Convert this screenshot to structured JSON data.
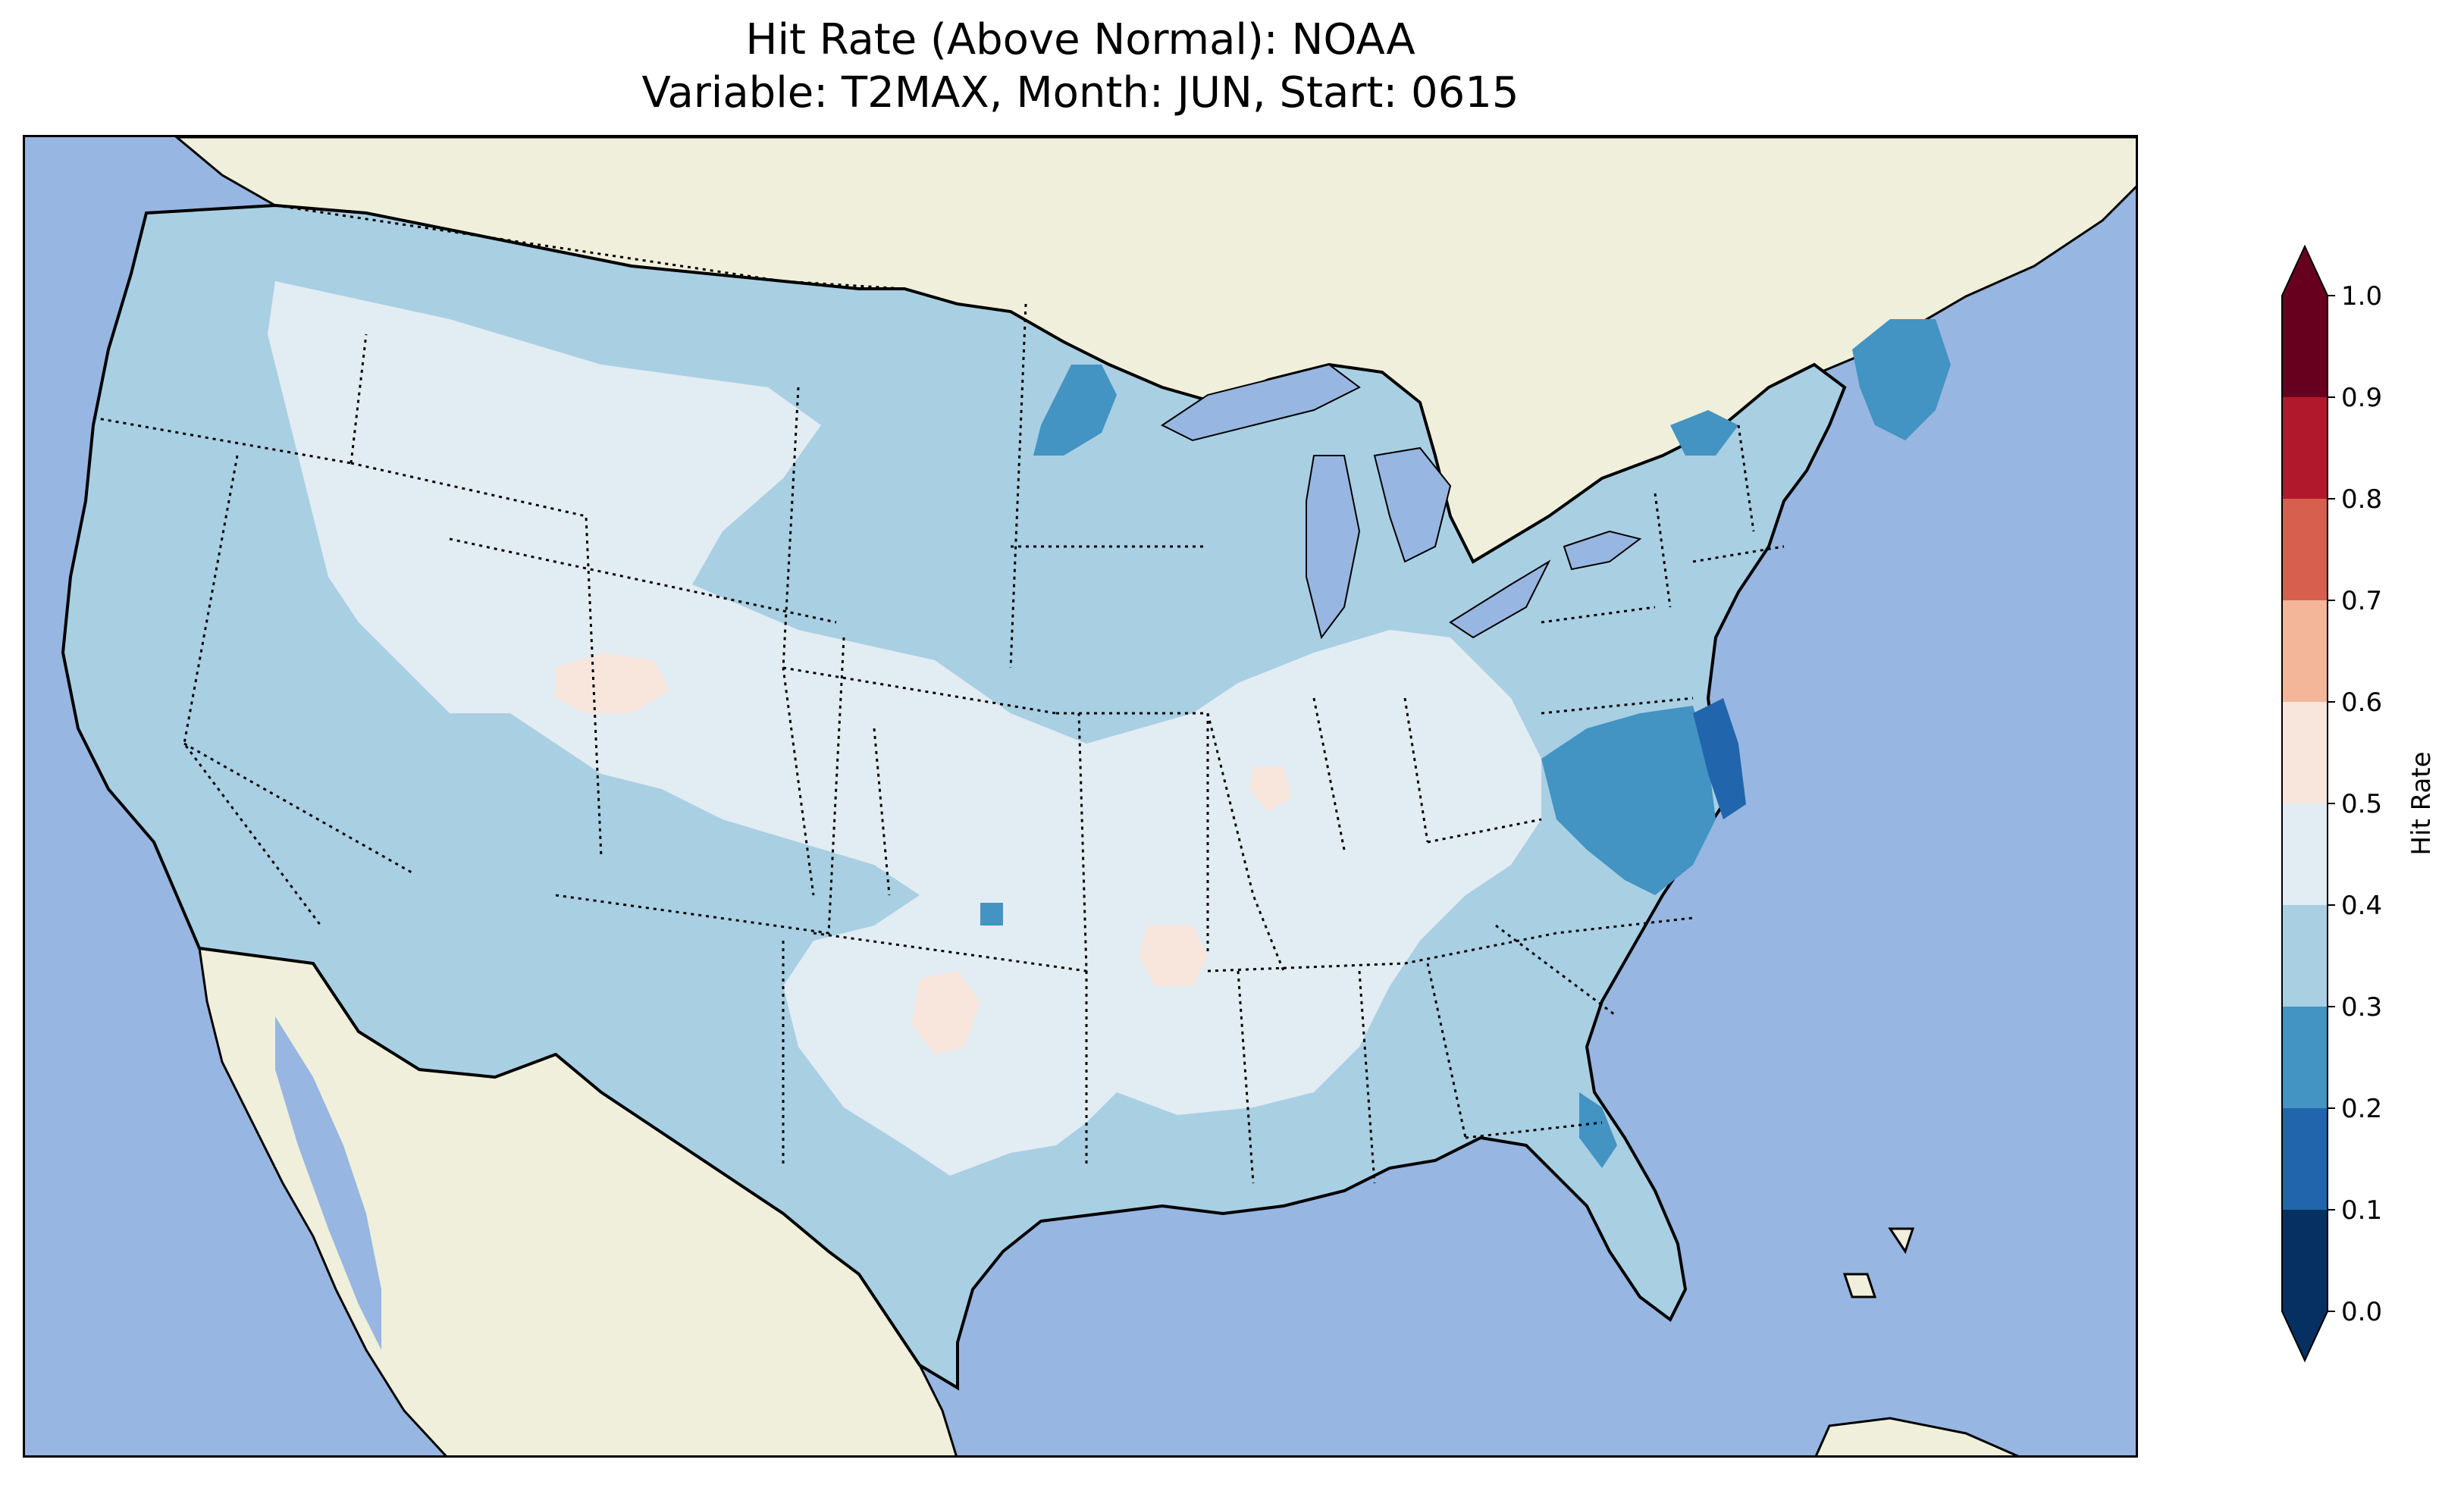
{
  "title": {
    "line1": "Hit Rate (Above Normal): NOAA",
    "line2": "Variable: T2MAX, Month: JUN, Start: 0615"
  },
  "colors": {
    "ocean": "#97b6e1",
    "land": "#efefdb",
    "coastline": "#000000",
    "borders": "#000000"
  },
  "colorbar": {
    "label": "Hit Rate",
    "ticks": [
      "0.0",
      "0.1",
      "0.2",
      "0.3",
      "0.4",
      "0.5",
      "0.6",
      "0.7",
      "0.8",
      "0.9",
      "1.0"
    ],
    "bins": [
      {
        "range": "0.0-0.1",
        "color": "#053061"
      },
      {
        "range": "0.1-0.2",
        "color": "#2166ac"
      },
      {
        "range": "0.2-0.3",
        "color": "#4393c3"
      },
      {
        "range": "0.3-0.4",
        "color": "#a9cfe3"
      },
      {
        "range": "0.4-0.5",
        "color": "#e2ecf3"
      },
      {
        "range": "0.5-0.6",
        "color": "#f8e6dc"
      },
      {
        "range": "0.6-0.7",
        "color": "#f4b699"
      },
      {
        "range": "0.7-0.8",
        "color": "#d6604d"
      },
      {
        "range": "0.8-0.9",
        "color": "#b2182b"
      },
      {
        "range": "0.9-1.0",
        "color": "#67001f"
      }
    ],
    "extend": "both"
  },
  "map_regions": [
    {
      "name": "pacific-coast-band",
      "bin": "0.3-0.4"
    },
    {
      "name": "great-basin-light",
      "bin": "0.4-0.5"
    },
    {
      "name": "southwest-band",
      "bin": "0.3-0.4"
    },
    {
      "name": "central-plains-light",
      "bin": "0.4-0.5"
    },
    {
      "name": "midwest-band",
      "bin": "0.3-0.4"
    },
    {
      "name": "southeast-band",
      "bin": "0.3-0.4"
    },
    {
      "name": "northeast-band",
      "bin": "0.3-0.4"
    },
    {
      "name": "mid-atlantic-dark",
      "bin": "0.2-0.3"
    },
    {
      "name": "maine-dark",
      "bin": "0.2-0.3"
    },
    {
      "name": "minnesota-dark",
      "bin": "0.2-0.3"
    },
    {
      "name": "florida-dark",
      "bin": "0.2-0.3"
    },
    {
      "name": "oklahoma-patch",
      "bin": "0.3-0.4"
    },
    {
      "name": "colorado-pink",
      "bin": "0.5-0.6"
    },
    {
      "name": "texas-pink",
      "bin": "0.5-0.6"
    },
    {
      "name": "arkansas-pink",
      "bin": "0.5-0.6"
    },
    {
      "name": "illinois-pink",
      "bin": "0.5-0.6"
    }
  ]
}
